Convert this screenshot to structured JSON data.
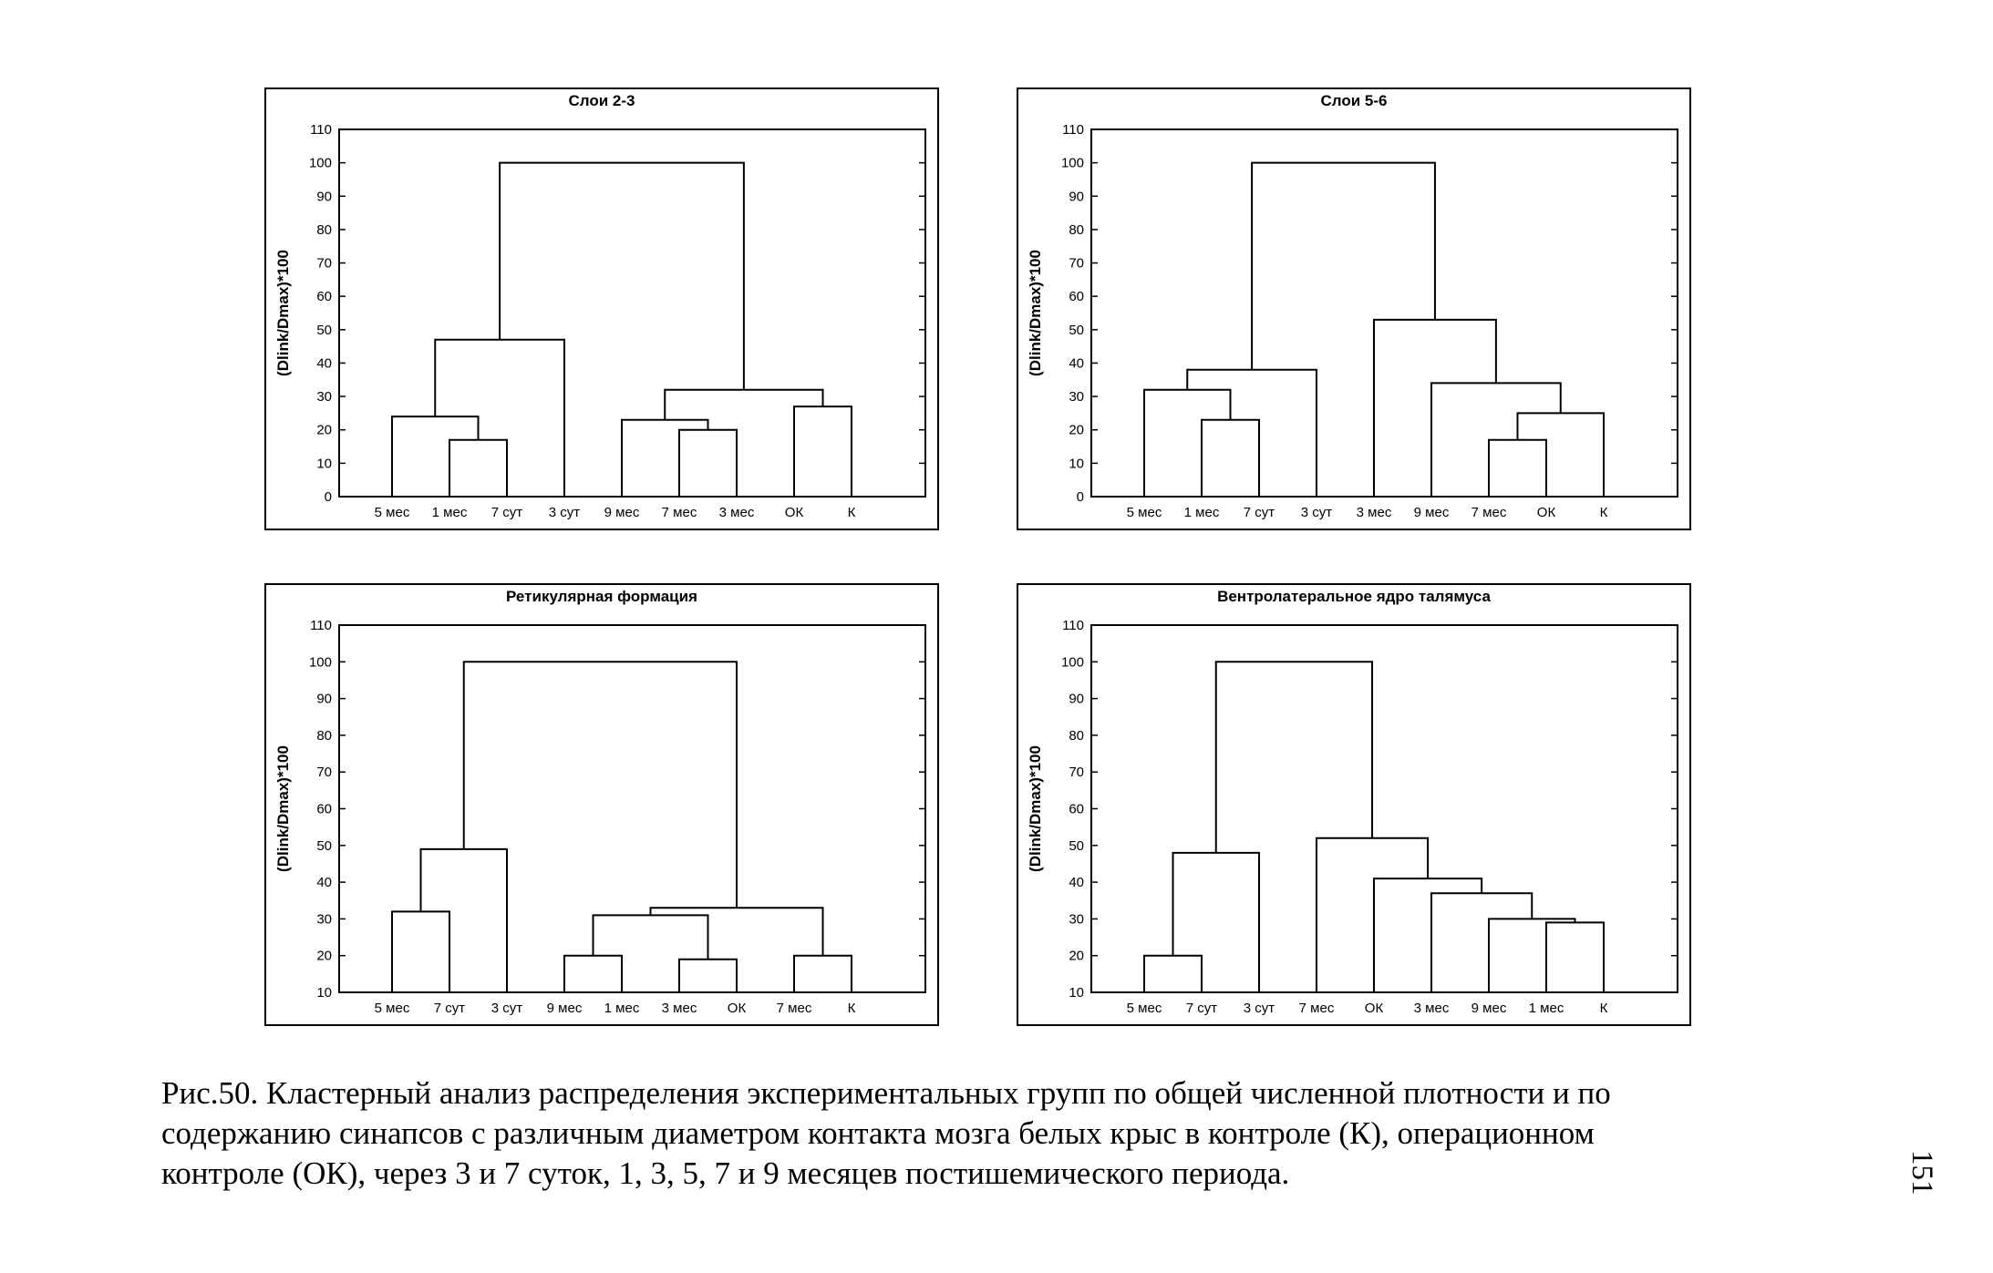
{
  "chart_data": [
    {
      "type": "dendrogram",
      "title": "Слои 2-3",
      "ylabel": "(Dlink/Dmax)*100",
      "ylim": [
        0,
        110
      ],
      "yticks": [
        0,
        10,
        20,
        30,
        40,
        50,
        60,
        70,
        80,
        90,
        100,
        110
      ],
      "leaves": [
        "5 мес",
        "1 мес",
        "7 сут",
        "3 сут",
        "9 мес",
        "7 мес",
        "3 мес",
        "ОК",
        "К"
      ],
      "merges": [
        {
          "a": [
            1
          ],
          "b": [
            2
          ],
          "height": 17
        },
        {
          "a": [
            5
          ],
          "b": [
            6
          ],
          "height": 20
        },
        {
          "a": [
            0
          ],
          "b": [
            1,
            2
          ],
          "height": 24
        },
        {
          "a": [
            4
          ],
          "b": [
            5,
            6
          ],
          "height": 23
        },
        {
          "a": [
            7
          ],
          "b": [
            8
          ],
          "height": 27
        },
        {
          "a": [
            4,
            5,
            6
          ],
          "b": [
            7,
            8
          ],
          "height": 32
        },
        {
          "a": [
            0,
            1,
            2
          ],
          "b": [
            3
          ],
          "height": 47
        },
        {
          "a": [
            0,
            1,
            2,
            3
          ],
          "b": [
            4,
            5,
            6,
            7,
            8
          ],
          "height": 100
        }
      ]
    },
    {
      "type": "dendrogram",
      "title": "Слои 5-6",
      "ylabel": "(Dlink/Dmax)*100",
      "ylim": [
        0,
        110
      ],
      "yticks": [
        0,
        10,
        20,
        30,
        40,
        50,
        60,
        70,
        80,
        90,
        100,
        110
      ],
      "leaves": [
        "5 мес",
        "1 мес",
        "7 сут",
        "3 сут",
        "3 мес",
        "9 мес",
        "7 мес",
        "ОК",
        "К"
      ],
      "merges": [
        {
          "a": [
            1
          ],
          "b": [
            2
          ],
          "height": 23
        },
        {
          "a": [
            6
          ],
          "b": [
            7
          ],
          "height": 17
        },
        {
          "a": [
            0
          ],
          "b": [
            1,
            2
          ],
          "height": 32
        },
        {
          "a": [
            6,
            7
          ],
          "b": [
            8
          ],
          "height": 25
        },
        {
          "a": [
            5
          ],
          "b": [
            6,
            7,
            8
          ],
          "height": 34
        },
        {
          "a": [
            0,
            1,
            2
          ],
          "b": [
            3
          ],
          "height": 38
        },
        {
          "a": [
            4
          ],
          "b": [
            5,
            6,
            7,
            8
          ],
          "height": 53
        },
        {
          "a": [
            0,
            1,
            2,
            3
          ],
          "b": [
            4,
            5,
            6,
            7,
            8
          ],
          "height": 100
        }
      ]
    },
    {
      "type": "dendrogram",
      "title": "Ретикулярная формация",
      "ylabel": "(Dlink/Dmax)*100",
      "ylim": [
        10,
        110
      ],
      "yticks": [
        10,
        20,
        30,
        40,
        50,
        60,
        70,
        80,
        90,
        100,
        110
      ],
      "leaves": [
        "5 мес",
        "7 сут",
        "3 сут",
        "9 мес",
        "1 мес",
        "3 мес",
        "ОК",
        "7 мес",
        "К"
      ],
      "merges": [
        {
          "a": [
            0
          ],
          "b": [
            1
          ],
          "height": 32
        },
        {
          "a": [
            3
          ],
          "b": [
            4
          ],
          "height": 20
        },
        {
          "a": [
            5
          ],
          "b": [
            6
          ],
          "height": 19
        },
        {
          "a": [
            7
          ],
          "b": [
            8
          ],
          "height": 20
        },
        {
          "a": [
            3,
            4
          ],
          "b": [
            5,
            6
          ],
          "height": 31
        },
        {
          "a": [
            3,
            4,
            5,
            6
          ],
          "b": [
            7,
            8
          ],
          "height": 33
        },
        {
          "a": [
            0,
            1
          ],
          "b": [
            2
          ],
          "height": 49
        },
        {
          "a": [
            0,
            1,
            2
          ],
          "b": [
            3,
            4,
            5,
            6,
            7,
            8
          ],
          "height": 100
        }
      ]
    },
    {
      "type": "dendrogram",
      "title": "Вентролатеральное ядро талямуса",
      "ylabel": "(Dlink/Dmax)*100",
      "ylim": [
        10,
        110
      ],
      "yticks": [
        10,
        20,
        30,
        40,
        50,
        60,
        70,
        80,
        90,
        100,
        110
      ],
      "leaves": [
        "5 мес",
        "7 сут",
        "3 сут",
        "7 мес",
        "ОК",
        "3 мес",
        "9 мес",
        "1 мес",
        "К"
      ],
      "merges": [
        {
          "a": [
            0
          ],
          "b": [
            1
          ],
          "height": 20
        },
        {
          "a": [
            7
          ],
          "b": [
            8
          ],
          "height": 29
        },
        {
          "a": [
            6
          ],
          "b": [
            7,
            8
          ],
          "height": 30
        },
        {
          "a": [
            5
          ],
          "b": [
            6,
            7,
            8
          ],
          "height": 37
        },
        {
          "a": [
            4
          ],
          "b": [
            5,
            6,
            7,
            8
          ],
          "height": 41
        },
        {
          "a": [
            0,
            1
          ],
          "b": [
            2
          ],
          "height": 48
        },
        {
          "a": [
            3
          ],
          "b": [
            4,
            5,
            6,
            7,
            8
          ],
          "height": 52
        },
        {
          "a": [
            0,
            1,
            2
          ],
          "b": [
            3,
            4,
            5,
            6,
            7,
            8
          ],
          "height": 100
        }
      ]
    }
  ],
  "caption": {
    "line1": "Рис.50. Кластерный анализ распределения экспериментальных групп по общей численной плотности и по",
    "line2": "содержанию синапсов с различным диаметром контакта мозга белых крыс в контроле (К), операционном",
    "line3": "контроле (ОК), через 3 и 7 суток, 1, 3, 5, 7 и 9 месяцев постишемического периода."
  },
  "page_number": "151"
}
